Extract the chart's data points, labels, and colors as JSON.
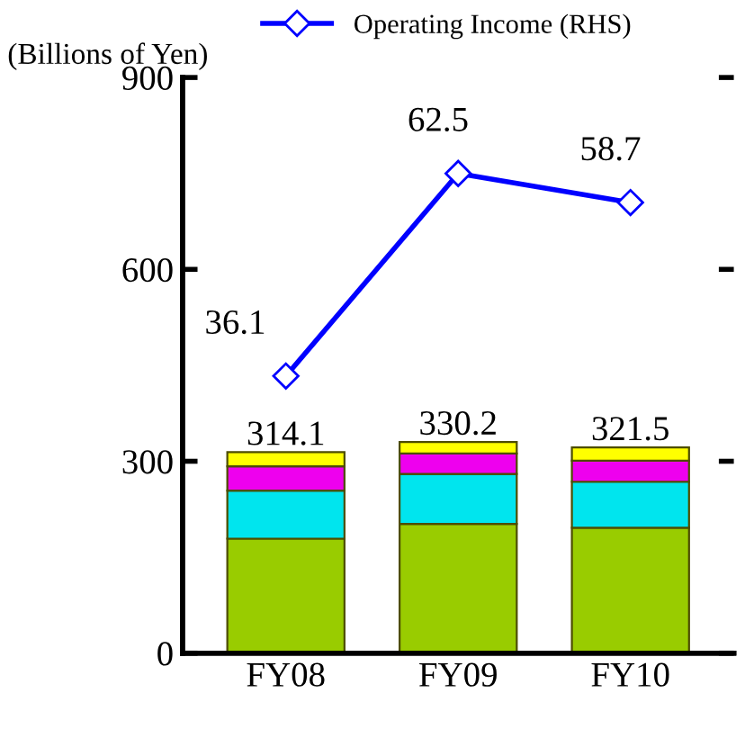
{
  "chart_data": {
    "type": "bar",
    "stacked": true,
    "ylabel": "(Billions of Yen)",
    "categories": [
      "FY08",
      "FY09",
      "FY10"
    ],
    "series": [
      {
        "color": "#99cc00",
        "values": [
          179,
          202,
          196
        ]
      },
      {
        "color": "#00e5ee",
        "values": [
          75,
          78,
          72
        ]
      },
      {
        "color": "#ee00ee",
        "values": [
          38,
          32,
          33
        ]
      },
      {
        "color": "#ffff00",
        "values": [
          22.1,
          18.2,
          20.5
        ]
      },
      {
        "name": "Operating Income (RHS)",
        "type": "line",
        "axis": "y2",
        "color": "#0000ff",
        "marker": "diamond",
        "values": [
          36.1,
          62.5,
          58.7
        ],
        "value_labels": [
          "36.1",
          "62.5",
          "58.7"
        ]
      }
    ],
    "totals": [
      "314.1",
      "330.2",
      "321.5"
    ],
    "ylim": [
      0,
      900
    ],
    "yticks": [
      0,
      300,
      600,
      900
    ],
    "y2lim": [
      0,
      75
    ],
    "y2ticks": [
      {
        "value": 0,
        "label": null
      },
      {
        "value": 25,
        "label": null
      },
      {
        "value": 50,
        "label": null
      },
      {
        "value": 75,
        "label": null
      }
    ],
    "grid": false,
    "legend": "top"
  }
}
